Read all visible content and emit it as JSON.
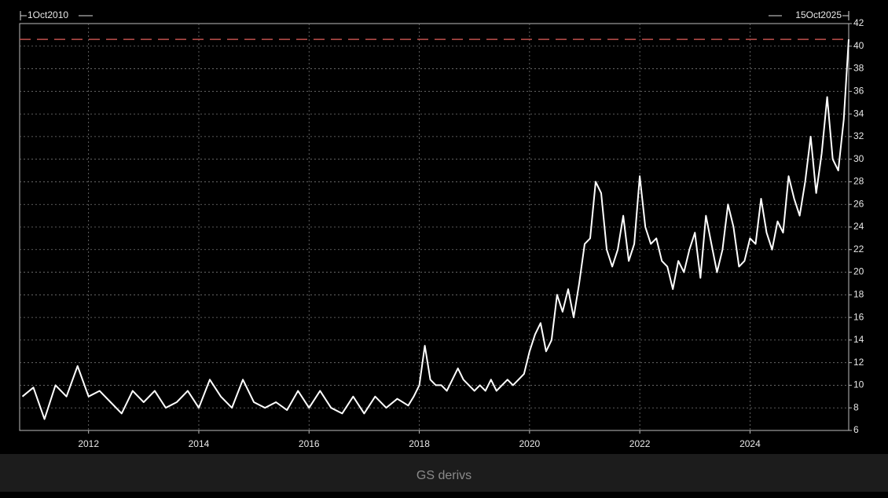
{
  "chart_data": {
    "type": "line",
    "start_label": "1Oct2010",
    "end_label": "15Oct2025",
    "color": "#ffffff",
    "reference_line": {
      "value": 40.6,
      "color": "#c0504d"
    },
    "x": [
      2010.8,
      2011.0,
      2011.2,
      2011.4,
      2011.6,
      2011.8,
      2012.0,
      2012.2,
      2012.4,
      2012.6,
      2012.8,
      2013.0,
      2013.2,
      2013.4,
      2013.6,
      2013.8,
      2014.0,
      2014.2,
      2014.4,
      2014.6,
      2014.8,
      2015.0,
      2015.2,
      2015.4,
      2015.6,
      2015.8,
      2016.0,
      2016.2,
      2016.4,
      2016.6,
      2016.8,
      2017.0,
      2017.2,
      2017.4,
      2017.6,
      2017.8,
      2017.9,
      2018.0,
      2018.1,
      2018.2,
      2018.3,
      2018.4,
      2018.5,
      2018.6,
      2018.7,
      2018.8,
      2018.9,
      2019.0,
      2019.1,
      2019.2,
      2019.3,
      2019.4,
      2019.5,
      2019.6,
      2019.7,
      2019.8,
      2019.9,
      2020.0,
      2020.1,
      2020.2,
      2020.3,
      2020.4,
      2020.5,
      2020.6,
      2020.7,
      2020.8,
      2020.9,
      2021.0,
      2021.1,
      2021.2,
      2021.3,
      2021.4,
      2021.5,
      2021.6,
      2021.7,
      2021.8,
      2021.9,
      2022.0,
      2022.1,
      2022.2,
      2022.3,
      2022.4,
      2022.5,
      2022.6,
      2022.7,
      2022.8,
      2022.9,
      2023.0,
      2023.1,
      2023.2,
      2023.3,
      2023.4,
      2023.5,
      2023.6,
      2023.7,
      2023.8,
      2023.9,
      2024.0,
      2024.1,
      2024.2,
      2024.3,
      2024.4,
      2024.5,
      2024.6,
      2024.7,
      2024.8,
      2024.9,
      2025.0,
      2025.1,
      2025.2,
      2025.3,
      2025.4,
      2025.5,
      2025.6,
      2025.7,
      2025.79
    ],
    "values": [
      9.0,
      9.8,
      7.0,
      10.0,
      9.0,
      11.7,
      9.0,
      9.5,
      8.5,
      7.5,
      9.5,
      8.5,
      9.5,
      8.0,
      8.5,
      9.5,
      8.0,
      10.5,
      9.0,
      8.0,
      10.5,
      8.5,
      8.0,
      8.5,
      7.8,
      9.5,
      8.0,
      9.5,
      8.0,
      7.5,
      9.0,
      7.5,
      9.0,
      8.0,
      8.8,
      8.2,
      9.0,
      10.0,
      13.5,
      10.5,
      10.0,
      10.0,
      9.5,
      10.5,
      11.5,
      10.5,
      10.0,
      9.5,
      10.0,
      9.5,
      10.5,
      9.5,
      10.0,
      10.5,
      10.0,
      10.5,
      11.0,
      13.0,
      14.5,
      15.5,
      13.0,
      14.0,
      18.0,
      16.5,
      18.5,
      16.0,
      19.0,
      22.5,
      23.0,
      28.0,
      27.0,
      22.0,
      20.5,
      22.0,
      25.0,
      21.0,
      22.5,
      28.5,
      24.0,
      22.5,
      23.0,
      21.0,
      20.5,
      18.5,
      21.0,
      20.0,
      22.0,
      23.5,
      19.5,
      25.0,
      22.5,
      20.0,
      22.0,
      26.0,
      24.0,
      20.5,
      21.0,
      23.0,
      22.5,
      26.5,
      23.5,
      22.0,
      24.5,
      23.5,
      28.5,
      26.5,
      25.0,
      28.0,
      32.0,
      27.0,
      30.5,
      35.5,
      30.0,
      29.0,
      33.5,
      40.6
    ],
    "xlim": [
      2010.75,
      2025.79
    ],
    "xticks": [
      2012,
      2014,
      2016,
      2018,
      2020,
      2022,
      2024
    ],
    "ylim": [
      6,
      42
    ],
    "yticks": [
      6,
      8,
      10,
      12,
      14,
      16,
      18,
      20,
      22,
      24,
      26,
      28,
      30,
      32,
      34,
      36,
      38,
      40,
      42
    ],
    "grid": true
  },
  "caption": "GS derivs"
}
